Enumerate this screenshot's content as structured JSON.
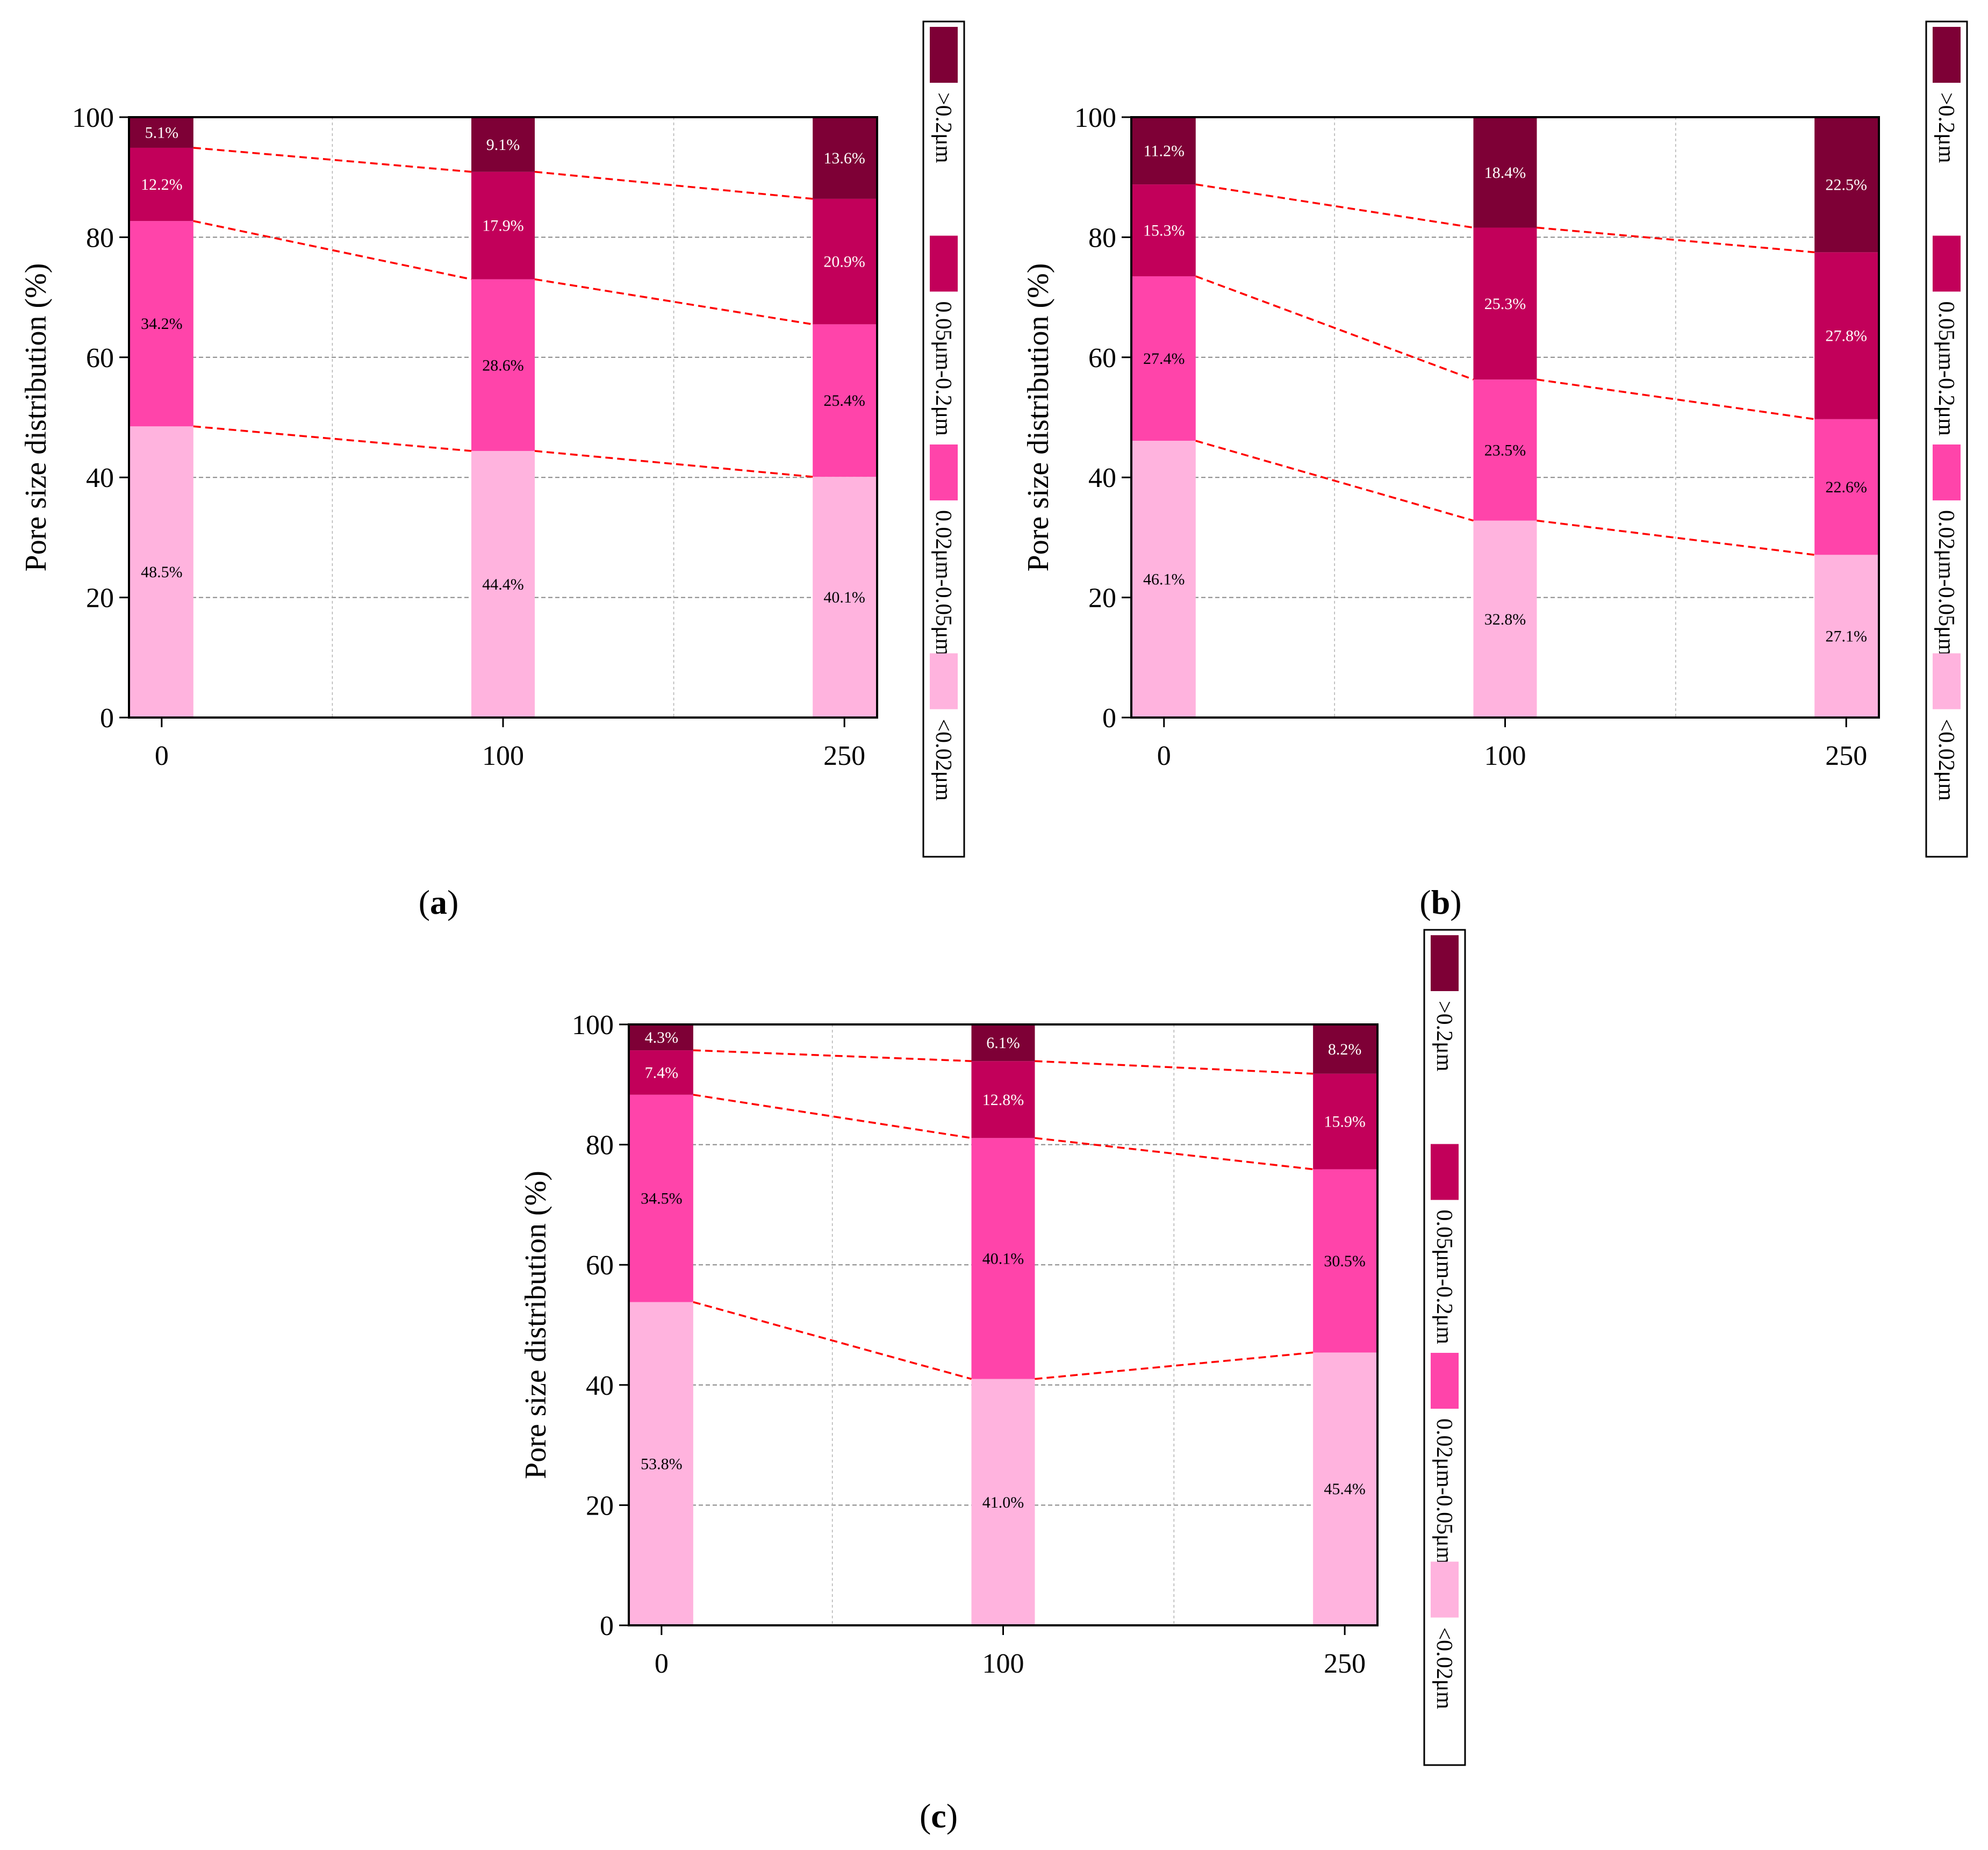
{
  "figure": {
    "ylabel": "Pore size distribution (%)",
    "yticks": [
      0,
      20,
      40,
      60,
      80,
      100
    ],
    "ylim": [
      0,
      100
    ],
    "legend_entries": [
      "<0.02μm",
      "0.02μm-0.05μm",
      "0.05μm-0.2μm",
      ">0.2μm"
    ],
    "colors": {
      "lt_002": "#ffb3de",
      "002_005": "#ff44aa",
      "005_02": "#c2005a",
      "gt_02": "#7e0036",
      "trend_line": "#ff0000",
      "grid": "#888888"
    }
  },
  "chart_data": [
    {
      "type": "bar",
      "stacked": true,
      "panel_label": "a",
      "categories": [
        "0",
        "100",
        "250"
      ],
      "ylabel": "Pore size distribution (%)",
      "ylim": [
        0,
        100
      ],
      "series": [
        {
          "name": "<0.02μm",
          "values": [
            48.5,
            44.4,
            40.1
          ],
          "labels": [
            "48.5%",
            "44.4%",
            "40.1%"
          ]
        },
        {
          "name": "0.02μm-0.05μm",
          "values": [
            34.2,
            28.6,
            25.4
          ],
          "labels": [
            "34.2%",
            "28.6%",
            "25.4%"
          ]
        },
        {
          "name": "0.05μm-0.2μm",
          "values": [
            12.2,
            17.9,
            20.9
          ],
          "labels": [
            "12.2%",
            "17.9%",
            "20.9%"
          ]
        },
        {
          "name": ">0.2μm",
          "values": [
            5.1,
            9.1,
            13.6
          ],
          "labels": [
            "5.1%",
            "9.1%",
            "13.6%"
          ]
        }
      ],
      "legend": "right"
    },
    {
      "type": "bar",
      "stacked": true,
      "panel_label": "b",
      "categories": [
        "0",
        "100",
        "250"
      ],
      "ylabel": "Pore size distribution (%)",
      "ylim": [
        0,
        100
      ],
      "series": [
        {
          "name": "<0.02μm",
          "values": [
            46.1,
            32.8,
            27.1
          ],
          "labels": [
            "46.1%",
            "32.8%",
            "27.1%"
          ]
        },
        {
          "name": "0.02μm-0.05μm",
          "values": [
            27.4,
            23.5,
            22.6
          ],
          "labels": [
            "27.4%",
            "23.5%",
            "22.6%"
          ]
        },
        {
          "name": "0.05μm-0.2μm",
          "values": [
            15.3,
            25.3,
            27.8
          ],
          "labels": [
            "15.3%",
            "25.3%",
            "27.8%"
          ]
        },
        {
          "name": ">0.2μm",
          "values": [
            11.2,
            18.4,
            22.5
          ],
          "labels": [
            "11.2%",
            "18.4%",
            "22.5%"
          ]
        }
      ],
      "legend": "right"
    },
    {
      "type": "bar",
      "stacked": true,
      "panel_label": "c",
      "categories": [
        "0",
        "100",
        "250"
      ],
      "ylabel": "Pore size distribution (%)",
      "ylim": [
        0,
        100
      ],
      "series": [
        {
          "name": "<0.02μm",
          "values": [
            53.8,
            41.0,
            45.4
          ],
          "labels": [
            "53.8%",
            "41.0%",
            "45.4%"
          ]
        },
        {
          "name": "0.02μm-0.05μm",
          "values": [
            34.5,
            40.1,
            30.5
          ],
          "labels": [
            "34.5%",
            "40.1%",
            "30.5%"
          ]
        },
        {
          "name": "0.05μm-0.2μm",
          "values": [
            7.4,
            12.8,
            15.9
          ],
          "labels": [
            "7.4%",
            "12.8%",
            "15.9%"
          ]
        },
        {
          "name": ">0.2μm",
          "values": [
            4.3,
            6.1,
            8.2
          ],
          "labels": [
            "4.3%",
            "6.1%",
            "8.2%"
          ]
        }
      ],
      "legend": "right"
    }
  ]
}
